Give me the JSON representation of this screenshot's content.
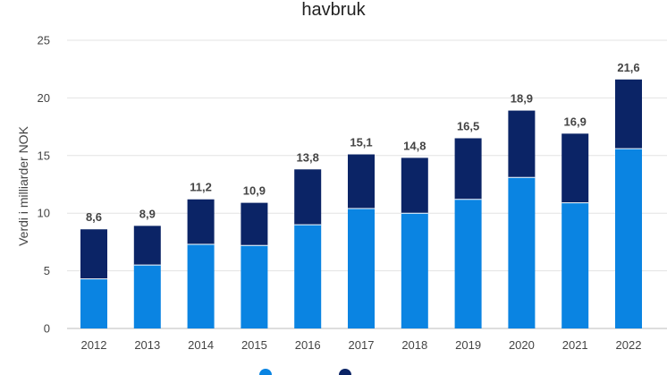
{
  "chart_data": {
    "type": "bar",
    "stacked": true,
    "title": "havbruk",
    "xlabel": "",
    "ylabel": "Verdi i milliarder NOK",
    "ylim": [
      0,
      25
    ],
    "yticks": [
      0,
      5,
      10,
      15,
      20,
      25
    ],
    "grid": true,
    "legend_position": "bottom",
    "categories": [
      "2012",
      "2013",
      "2014",
      "2015",
      "2016",
      "2017",
      "2018",
      "2019",
      "2020",
      "2021",
      "2022"
    ],
    "series": [
      {
        "color": "#0a84e2",
        "values": [
          4.3,
          5.5,
          7.3,
          7.2,
          9.0,
          10.4,
          10.0,
          11.2,
          13.1,
          10.9,
          15.6
        ]
      },
      {
        "color": "#0b2466",
        "values": [
          4.3,
          3.4,
          3.9,
          3.7,
          4.8,
          4.7,
          4.8,
          5.3,
          5.8,
          6.0,
          6.0
        ]
      }
    ],
    "totals": [
      "8,6",
      "8,9",
      "11,2",
      "10,9",
      "13,8",
      "15,1",
      "14,8",
      "16,5",
      "18,9",
      "16,9",
      "21,6"
    ]
  }
}
